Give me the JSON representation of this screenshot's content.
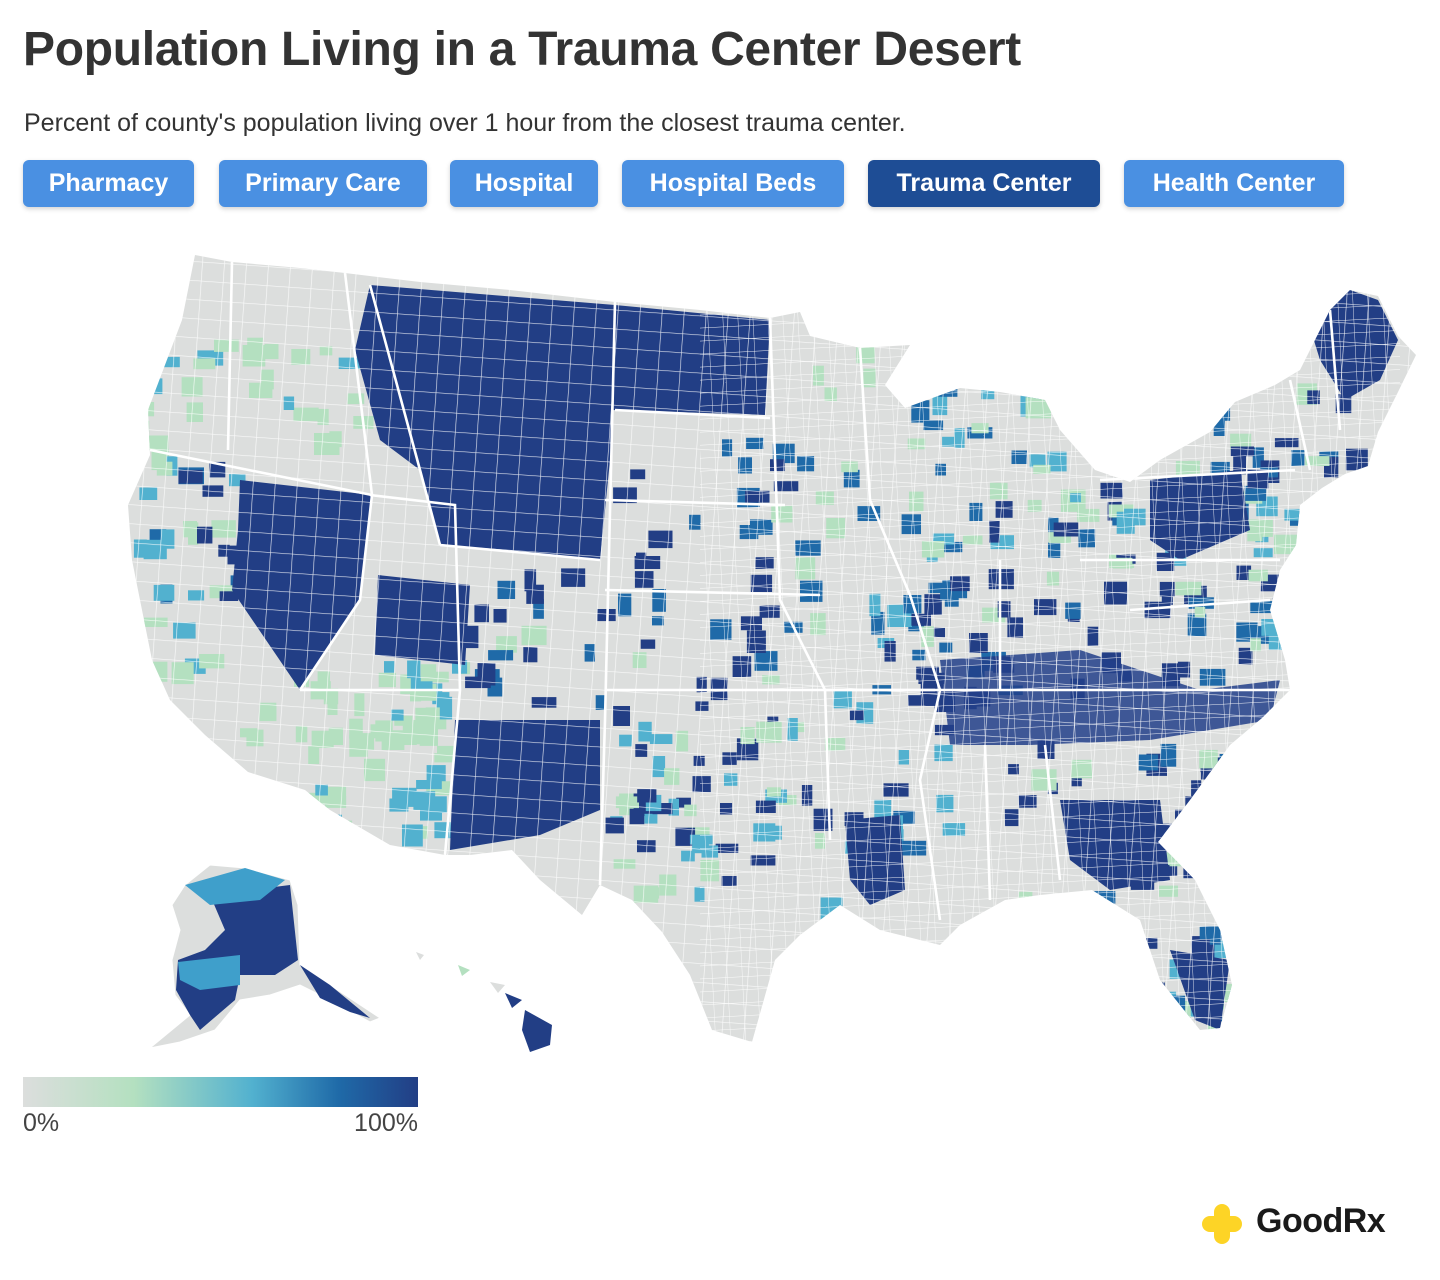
{
  "title": "Population Living in a Trauma Center Desert",
  "subtitle": "Percent of county's population living over 1 hour from the closest trauma center.",
  "tabs": [
    {
      "label": "Pharmacy",
      "active": false
    },
    {
      "label": "Primary Care",
      "active": false
    },
    {
      "label": "Hospital",
      "active": false
    },
    {
      "label": "Hospital Beds",
      "active": false
    },
    {
      "label": "Trauma Center",
      "active": true
    },
    {
      "label": "Health Center",
      "active": false
    }
  ],
  "legend": {
    "min_label": "0%",
    "max_label": "100%"
  },
  "colors": {
    "tab": "#4a90e2",
    "tab_active": "#1e4d95",
    "scale": [
      "#dcdedd",
      "#b4e0c0",
      "#52b1cf",
      "#1f6aa8",
      "#223e85"
    ]
  },
  "map": {
    "type": "choropleth",
    "geography": "US counties",
    "metric": "percent of population over 1 hour from closest trauma center",
    "range": [
      0,
      100
    ],
    "unit": "%"
  },
  "brand": {
    "name": "GoodRx",
    "icon": "plus-cross-icon"
  }
}
